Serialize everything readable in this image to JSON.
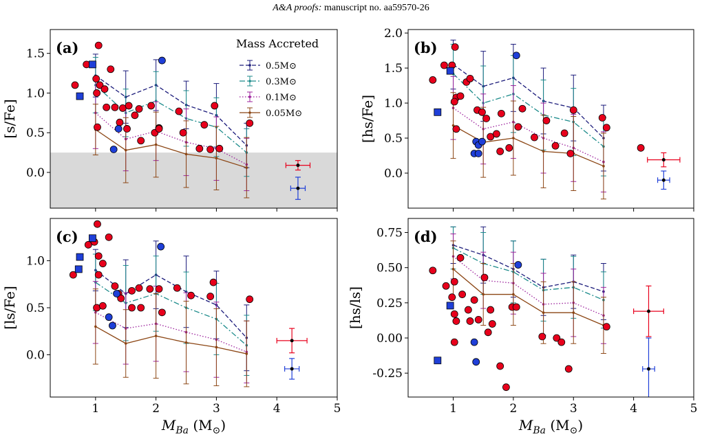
{
  "header": {
    "journal": "A&A proofs:",
    "manuscript": "manuscript no. aa59570-26"
  },
  "colors": {
    "star_red": "#e8001c",
    "star_blue": "#1f3fd8",
    "m05": "#1a1a7a",
    "m03": "#1a8a8a",
    "m01": "#9b1f9b",
    "m005": "#8b4513",
    "shade": "#d9d9d9"
  },
  "figure": {
    "xlabel_main": "M",
    "xlabel_sub": "Ba",
    "xlabel_unit": "(M",
    "xlabel_sun": "⊙",
    "xlabel_close": ")",
    "xticks": [
      "1",
      "2",
      "3",
      "4",
      "5"
    ]
  },
  "chart_data": [
    {
      "panel": "(a)",
      "type": "scatter",
      "ylabel": "[s/Fe]",
      "xlim": [
        0.25,
        5.0
      ],
      "ylim": [
        -0.45,
        1.8
      ],
      "yticks": [
        0.0,
        0.5,
        1.0,
        1.5
      ],
      "ytick_labels": [
        "0.0",
        "0.5",
        "1.0",
        "1.5"
      ],
      "shaded_below": 0.25,
      "legend": {
        "title": "Mass Accreted",
        "placement": "top-right",
        "entries": [
          "0.5M⊙",
          "0.3M⊙",
          "0.1M⊙",
          "0.05M⊙"
        ]
      },
      "series": [
        {
          "name": "0.5M⊙",
          "x": [
            1.0,
            1.5,
            2.0,
            2.5,
            3.0,
            3.5
          ],
          "y": [
            1.22,
            0.95,
            1.1,
            0.85,
            0.72,
            0.34
          ],
          "err": [
            0.27,
            0.33,
            0.32,
            0.3,
            0.4,
            0.28
          ]
        },
        {
          "name": "0.3M⊙",
          "x": [
            1.0,
            1.5,
            2.0,
            2.5,
            3.0,
            3.5
          ],
          "y": [
            1.1,
            0.75,
            0.9,
            0.68,
            0.57,
            0.25
          ],
          "err": [
            0.35,
            0.3,
            0.37,
            0.35,
            0.37,
            0.3
          ]
        },
        {
          "name": "0.1M⊙",
          "x": [
            1.0,
            1.5,
            2.0,
            2.5,
            3.0,
            3.5
          ],
          "y": [
            0.75,
            0.42,
            0.52,
            0.38,
            0.3,
            0.1
          ],
          "err": [
            0.45,
            0.4,
            0.37,
            0.42,
            0.4,
            0.33
          ]
        },
        {
          "name": "0.05M⊙",
          "x": [
            1.0,
            1.5,
            2.0,
            2.5,
            3.0,
            3.5
          ],
          "y": [
            0.54,
            0.28,
            0.35,
            0.23,
            0.18,
            0.06
          ],
          "err": [
            0.32,
            0.41,
            0.41,
            0.42,
            0.4,
            0.38
          ]
        }
      ],
      "red_points": [
        [
          0.66,
          1.1
        ],
        [
          0.85,
          1.36
        ],
        [
          1.01,
          1.18
        ],
        [
          1.05,
          1.6
        ],
        [
          1.07,
          1.1
        ],
        [
          1.02,
          1.0
        ],
        [
          1.15,
          1.05
        ],
        [
          1.25,
          1.3
        ],
        [
          1.03,
          0.57
        ],
        [
          1.18,
          0.82
        ],
        [
          1.32,
          0.82
        ],
        [
          1.4,
          0.63
        ],
        [
          1.45,
          0.81
        ],
        [
          1.52,
          0.55
        ],
        [
          1.55,
          0.84
        ],
        [
          1.65,
          0.72
        ],
        [
          1.72,
          0.8
        ],
        [
          1.75,
          0.4
        ],
        [
          1.92,
          0.84
        ],
        [
          1.98,
          0.5
        ],
        [
          2.05,
          0.56
        ],
        [
          2.05,
          0.55
        ],
        [
          2.38,
          0.77
        ],
        [
          2.45,
          0.5
        ],
        [
          2.72,
          0.3
        ],
        [
          2.9,
          0.29
        ],
        [
          2.8,
          0.6
        ],
        [
          2.97,
          0.84
        ],
        [
          3.05,
          0.3
        ],
        [
          3.55,
          0.62
        ]
      ],
      "blue_points": [
        [
          1.38,
          0.55
        ],
        [
          1.3,
          0.29
        ],
        [
          2.1,
          1.41
        ]
      ],
      "blue_squares": [
        [
          0.74,
          0.96
        ],
        [
          0.95,
          1.36
        ]
      ],
      "ref_red": {
        "x": 4.35,
        "y": 0.09,
        "xerr": 0.2,
        "yerr": 0.06
      },
      "ref_blue": {
        "x": 4.35,
        "y": -0.2,
        "xerr": 0.12,
        "yerr": 0.14
      }
    },
    {
      "panel": "(b)",
      "type": "scatter",
      "ylabel": "[hs/Fe]",
      "xlim": [
        0.25,
        5.0
      ],
      "ylim": [
        -0.5,
        2.05
      ],
      "yticks": [
        0.0,
        0.5,
        1.0,
        1.5,
        2.0
      ],
      "ytick_labels": [
        "0.0",
        "0.5",
        "1.0",
        "1.5",
        "2.0"
      ],
      "series": [
        {
          "name": "0.5M⊙",
          "x": [
            1.0,
            1.5,
            2.0,
            2.5,
            3.0,
            3.5
          ],
          "y": [
            1.55,
            1.24,
            1.36,
            1.03,
            0.93,
            0.5
          ],
          "err": [
            0.35,
            0.5,
            0.48,
            0.47,
            0.47,
            0.47
          ]
        },
        {
          "name": "0.3M⊙",
          "x": [
            1.0,
            1.5,
            2.0,
            2.5,
            3.0,
            3.5
          ],
          "y": [
            1.42,
            1.0,
            1.13,
            0.83,
            0.73,
            0.38
          ],
          "err": [
            0.42,
            0.53,
            0.55,
            0.5,
            0.48,
            0.42
          ]
        },
        {
          "name": "0.1M⊙",
          "x": [
            1.0,
            1.5,
            2.0,
            2.5,
            3.0,
            3.5
          ],
          "y": [
            0.93,
            0.63,
            0.73,
            0.5,
            0.36,
            0.16
          ],
          "err": [
            0.45,
            0.5,
            0.52,
            0.5,
            0.48,
            0.43
          ]
        },
        {
          "name": "0.05M⊙",
          "x": [
            1.0,
            1.5,
            2.0,
            2.5,
            3.0,
            3.5
          ],
          "y": [
            0.68,
            0.44,
            0.5,
            0.31,
            0.28,
            0.1
          ],
          "err": [
            0.47,
            0.5,
            0.53,
            0.52,
            0.53,
            0.47
          ]
        }
      ],
      "red_points": [
        [
          0.66,
          1.33
        ],
        [
          0.85,
          1.54
        ],
        [
          0.98,
          1.54
        ],
        [
          1.03,
          1.8
        ],
        [
          1.05,
          1.08
        ],
        [
          1.12,
          1.1
        ],
        [
          1.22,
          1.3
        ],
        [
          1.28,
          1.35
        ],
        [
          1.02,
          1.02
        ],
        [
          1.05,
          0.63
        ],
        [
          1.4,
          0.9
        ],
        [
          1.48,
          0.87
        ],
        [
          1.55,
          0.78
        ],
        [
          1.62,
          0.52
        ],
        [
          1.72,
          0.56
        ],
        [
          1.8,
          0.85
        ],
        [
          1.78,
          0.31
        ],
        [
          1.93,
          0.36
        ],
        [
          2.08,
          0.66
        ],
        [
          2.15,
          0.92
        ],
        [
          2.35,
          0.51
        ],
        [
          2.55,
          0.75
        ],
        [
          2.7,
          0.39
        ],
        [
          2.85,
          0.57
        ],
        [
          2.95,
          0.28
        ],
        [
          3.0,
          0.9
        ],
        [
          3.48,
          0.79
        ],
        [
          3.55,
          0.65
        ],
        [
          4.12,
          0.36
        ]
      ],
      "blue_points": [
        [
          1.38,
          0.45
        ],
        [
          1.42,
          0.4
        ],
        [
          1.48,
          0.45
        ],
        [
          1.35,
          0.28
        ],
        [
          1.42,
          0.28
        ],
        [
          2.05,
          1.68
        ]
      ],
      "blue_squares": [
        [
          0.74,
          0.87
        ],
        [
          0.95,
          1.46
        ]
      ],
      "ref_red": {
        "x": 4.5,
        "y": 0.19,
        "xerr": 0.27,
        "yerr": 0.1
      },
      "ref_blue": {
        "x": 4.5,
        "y": -0.1,
        "xerr": 0.1,
        "yerr": 0.13
      }
    },
    {
      "panel": "(c)",
      "type": "scatter",
      "ylabel": "[ls/Fe]",
      "xlim": [
        0.25,
        5.0
      ],
      "ylim": [
        -0.45,
        1.45
      ],
      "yticks": [
        0.0,
        0.5,
        1.0
      ],
      "ytick_labels": [
        "0.0",
        "0.5",
        "1.0"
      ],
      "series": [
        {
          "name": "0.5M⊙",
          "x": [
            1.0,
            1.5,
            2.0,
            2.5,
            3.0,
            3.5
          ],
          "y": [
            0.9,
            0.65,
            0.85,
            0.67,
            0.53,
            0.18
          ],
          "err": [
            0.22,
            0.36,
            0.36,
            0.38,
            0.36,
            0.35
          ]
        },
        {
          "name": "0.3M⊙",
          "x": [
            1.0,
            1.5,
            2.0,
            2.5,
            3.0,
            3.5
          ],
          "y": [
            0.77,
            0.55,
            0.65,
            0.5,
            0.38,
            0.1
          ],
          "err": [
            0.3,
            0.4,
            0.4,
            0.38,
            0.38,
            0.32
          ]
        },
        {
          "name": "0.1M⊙",
          "x": [
            1.0,
            1.5,
            2.0,
            2.5,
            3.0,
            3.5
          ],
          "y": [
            0.45,
            0.28,
            0.33,
            0.24,
            0.16,
            0.03
          ],
          "err": [
            0.33,
            0.38,
            0.4,
            0.42,
            0.4,
            0.33
          ]
        },
        {
          "name": "0.05M⊙",
          "x": [
            1.0,
            1.5,
            2.0,
            2.5,
            3.0,
            3.5
          ],
          "y": [
            0.3,
            0.12,
            0.2,
            0.13,
            0.08,
            0.01
          ],
          "err": [
            0.4,
            0.36,
            0.45,
            0.44,
            0.41,
            0.35
          ]
        }
      ],
      "red_points": [
        [
          0.63,
          0.85
        ],
        [
          0.88,
          1.17
        ],
        [
          0.98,
          1.2
        ],
        [
          1.03,
          1.39
        ],
        [
          1.05,
          1.05
        ],
        [
          1.12,
          0.97
        ],
        [
          1.22,
          1.25
        ],
        [
          1.05,
          0.85
        ],
        [
          1.02,
          0.5
        ],
        [
          1.12,
          0.52
        ],
        [
          1.32,
          0.73
        ],
        [
          1.38,
          0.65
        ],
        [
          1.42,
          0.6
        ],
        [
          1.6,
          0.68
        ],
        [
          1.72,
          0.71
        ],
        [
          1.6,
          0.5
        ],
        [
          1.75,
          0.5
        ],
        [
          1.9,
          0.7
        ],
        [
          2.1,
          0.45
        ],
        [
          2.05,
          0.7
        ],
        [
          2.35,
          0.71
        ],
        [
          2.58,
          0.63
        ],
        [
          2.9,
          0.62
        ],
        [
          2.95,
          0.77
        ],
        [
          3.55,
          0.59
        ]
      ],
      "blue_points": [
        [
          1.35,
          0.65
        ],
        [
          1.22,
          0.4
        ],
        [
          1.28,
          0.31
        ],
        [
          2.08,
          1.15
        ]
      ],
      "blue_squares": [
        [
          0.72,
          0.91
        ],
        [
          0.74,
          1.04
        ],
        [
          0.95,
          1.24
        ]
      ],
      "ref_red": {
        "x": 4.25,
        "y": 0.15,
        "xerr": 0.25,
        "yerr": 0.13
      },
      "ref_blue": {
        "x": 4.25,
        "y": -0.15,
        "xerr": 0.12,
        "yerr": 0.11
      }
    },
    {
      "panel": "(d)",
      "type": "scatter",
      "ylabel": "[hs/ls]",
      "xlim": [
        0.25,
        5.0
      ],
      "ylim": [
        -0.42,
        0.85
      ],
      "yticks": [
        -0.25,
        0.0,
        0.25,
        0.5,
        0.75
      ],
      "ytick_labels": [
        "-0.25",
        "0.00",
        "0.25",
        "0.50",
        "0.75"
      ],
      "series": [
        {
          "name": "0.5M⊙",
          "x": [
            1.0,
            1.5,
            2.0,
            2.5,
            3.0,
            3.5
          ],
          "y": [
            0.66,
            0.59,
            0.49,
            0.36,
            0.4,
            0.33
          ],
          "err": [
            0.13,
            0.2,
            0.2,
            0.2,
            0.19,
            0.2
          ]
        },
        {
          "name": "0.3M⊙",
          "x": [
            1.0,
            1.5,
            2.0,
            2.5,
            3.0,
            3.5
          ],
          "y": [
            0.64,
            0.53,
            0.47,
            0.34,
            0.36,
            0.27
          ],
          "err": [
            0.15,
            0.22,
            0.22,
            0.22,
            0.22,
            0.2
          ]
        },
        {
          "name": "0.1M⊙",
          "x": [
            1.0,
            1.5,
            2.0,
            2.5,
            3.0,
            3.5
          ],
          "y": [
            0.58,
            0.41,
            0.39,
            0.24,
            0.25,
            0.16
          ],
          "err": [
            0.16,
            0.2,
            0.22,
            0.22,
            0.24,
            0.2
          ]
        },
        {
          "name": "0.05M⊙",
          "x": [
            1.0,
            1.5,
            2.0,
            2.5,
            3.0,
            3.5
          ],
          "y": [
            0.49,
            0.31,
            0.31,
            0.18,
            0.18,
            0.09
          ],
          "err": [
            0.2,
            0.22,
            0.22,
            0.22,
            0.22,
            0.2
          ]
        }
      ],
      "red_points": [
        [
          0.66,
          0.48
        ],
        [
          0.88,
          0.37
        ],
        [
          0.98,
          0.29
        ],
        [
          1.02,
          0.4
        ],
        [
          1.05,
          0.12
        ],
        [
          1.12,
          0.57
        ],
        [
          1.15,
          0.31
        ],
        [
          1.02,
          0.17
        ],
        [
          1.02,
          -0.03
        ],
        [
          1.25,
          0.2
        ],
        [
          1.28,
          0.12
        ],
        [
          1.35,
          0.27
        ],
        [
          1.42,
          0.13
        ],
        [
          1.52,
          0.43
        ],
        [
          1.58,
          0.04
        ],
        [
          1.62,
          0.2
        ],
        [
          1.65,
          0.1
        ],
        [
          1.78,
          -0.2
        ],
        [
          1.88,
          -0.35
        ],
        [
          1.98,
          0.22
        ],
        [
          2.05,
          0.22
        ],
        [
          2.48,
          0.01
        ],
        [
          2.72,
          0.0
        ],
        [
          2.8,
          -0.03
        ],
        [
          2.92,
          -0.22
        ],
        [
          3.55,
          0.08
        ]
      ],
      "blue_points": [
        [
          1.35,
          -0.03
        ],
        [
          1.38,
          -0.17
        ],
        [
          2.08,
          0.52
        ]
      ],
      "blue_squares": [
        [
          0.74,
          -0.16
        ],
        [
          0.95,
          0.23
        ]
      ],
      "ref_red": {
        "x": 4.25,
        "y": 0.19,
        "xerr": 0.25,
        "yerr": 0.18
      },
      "ref_blue": {
        "x": 4.25,
        "y": -0.22,
        "xerr": 0.1,
        "yerr": 0.22
      }
    }
  ]
}
